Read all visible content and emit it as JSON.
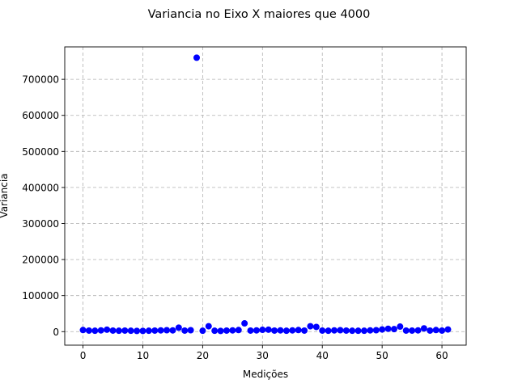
{
  "chart_data": {
    "type": "scatter",
    "title": "Variancia no Eixo X maiores que 4000",
    "xlabel": "Medições",
    "ylabel": "Variancia",
    "xlim": [
      -3.05,
      64.05
    ],
    "ylim": [
      -37500,
      790000
    ],
    "xticks": [
      0,
      10,
      20,
      30,
      40,
      50,
      60
    ],
    "yticks": [
      0,
      100000,
      200000,
      300000,
      400000,
      500000,
      600000,
      700000
    ],
    "grid": true,
    "marker_color": "#0000ff",
    "x": [
      0,
      1,
      2,
      3,
      4,
      5,
      6,
      7,
      8,
      9,
      10,
      11,
      12,
      13,
      14,
      15,
      16,
      17,
      18,
      19,
      20,
      21,
      22,
      23,
      24,
      25,
      26,
      27,
      28,
      29,
      30,
      31,
      32,
      33,
      34,
      35,
      36,
      37,
      38,
      39,
      40,
      41,
      42,
      43,
      44,
      45,
      46,
      47,
      48,
      49,
      50,
      51,
      52,
      53,
      54,
      55,
      56,
      57,
      58,
      59,
      60,
      61
    ],
    "y": [
      4500,
      3000,
      2500,
      3500,
      5500,
      3000,
      2500,
      3000,
      2500,
      2000,
      2000,
      2500,
      3000,
      3500,
      4000,
      3500,
      11000,
      3000,
      4000,
      760000,
      2500,
      15000,
      2500,
      2000,
      3000,
      3500,
      4500,
      23000,
      3000,
      3500,
      5000,
      5500,
      3000,
      3500,
      2500,
      3500,
      4500,
      3000,
      15000,
      13000,
      3000,
      2500,
      3500,
      4000,
      3000,
      2500,
      2500,
      2500,
      3500,
      4000,
      6000,
      8000,
      7000,
      14000,
      3000,
      3000,
      3500,
      9000,
      3000,
      4500,
      3000,
      6000
    ]
  }
}
